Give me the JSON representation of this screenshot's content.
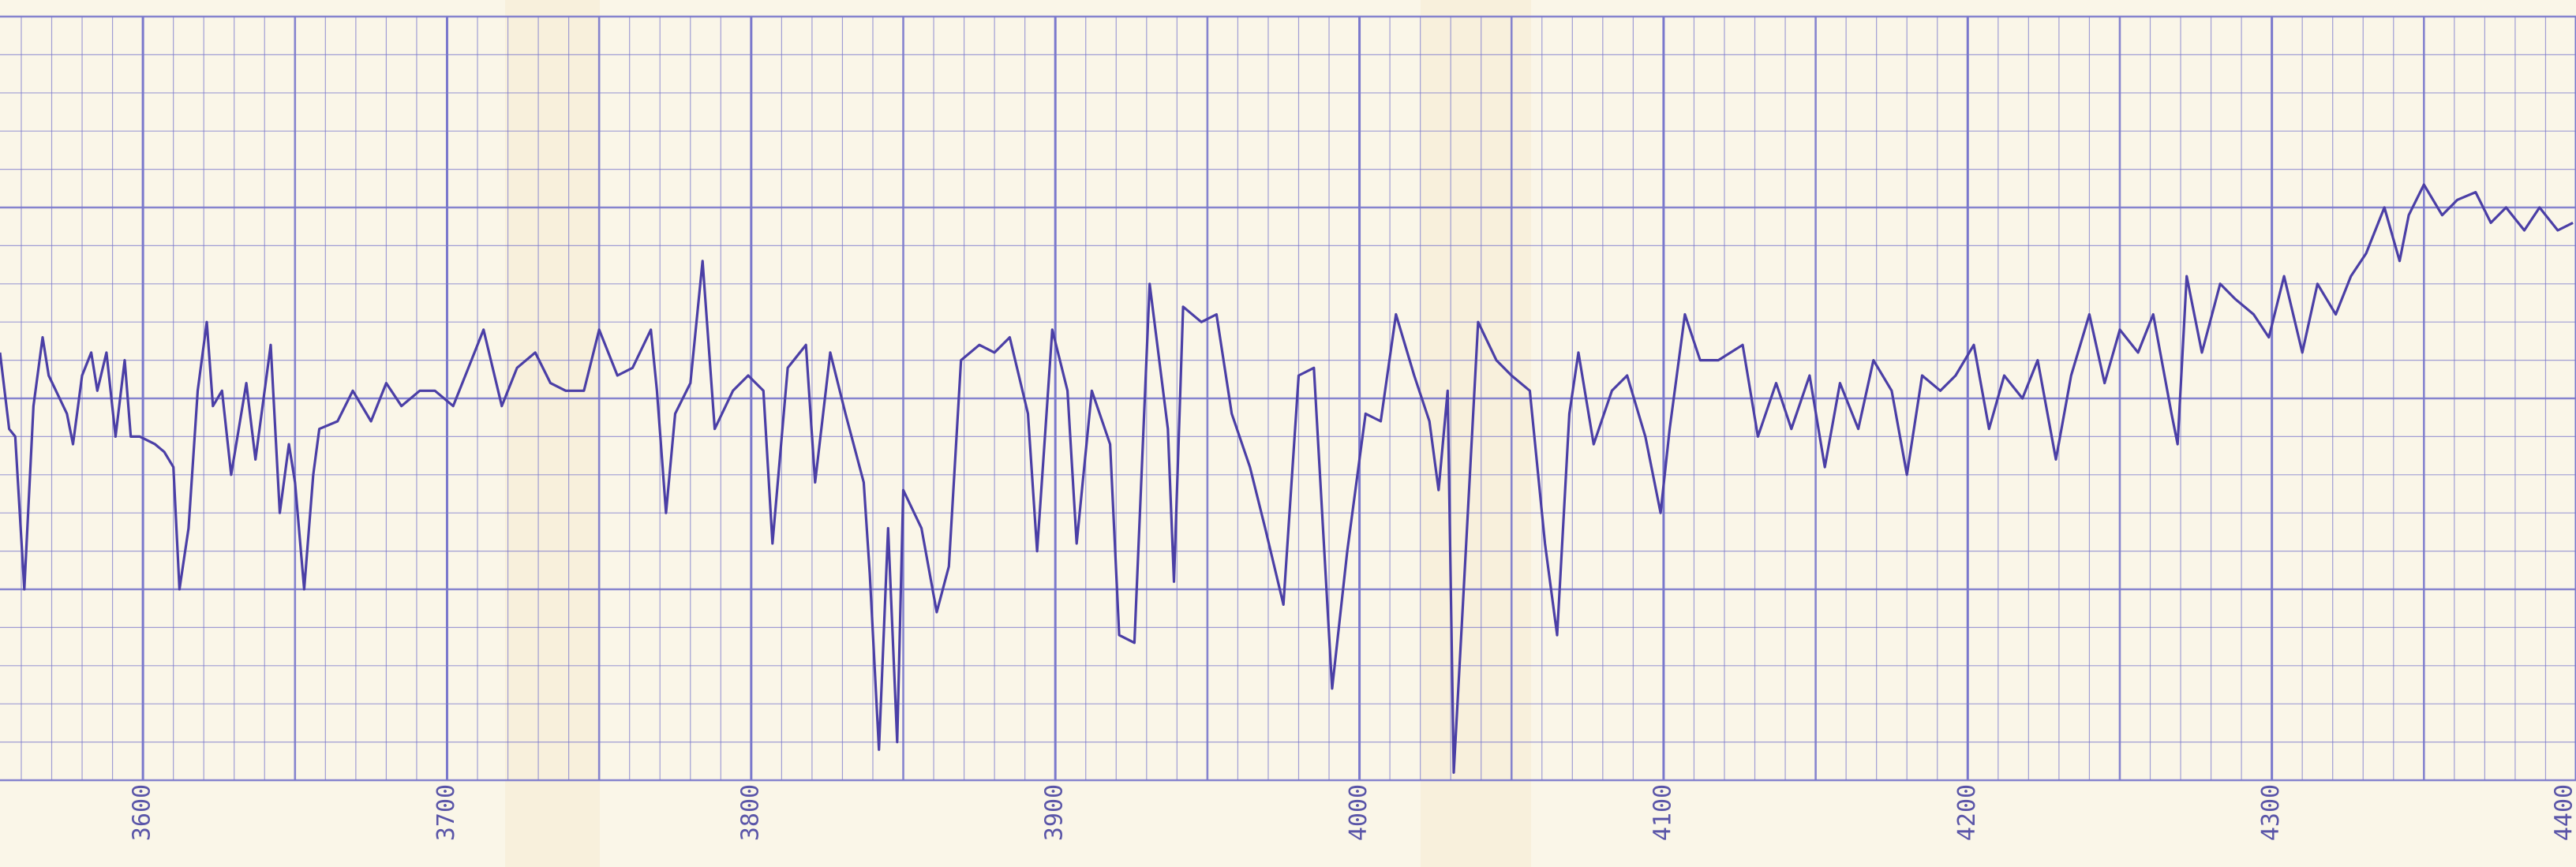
{
  "chart_data": {
    "type": "line",
    "color": "#4b3fa6",
    "grid": true,
    "xlim": [
      3553,
      4400
    ],
    "ylim": [
      0,
      100
    ],
    "xticks": [
      3600,
      3700,
      3800,
      3900,
      4000,
      4100,
      4200,
      4300,
      4400
    ],
    "x": [
      3553,
      3556,
      3558,
      3561,
      3564,
      3567,
      3569,
      3575,
      3577,
      3580,
      3583,
      3585,
      3588,
      3591,
      3594,
      3596,
      3599,
      3604,
      3607,
      3610,
      3612,
      3615,
      3618,
      3621,
      3623,
      3626,
      3629,
      3634,
      3637,
      3642,
      3645,
      3648,
      3650,
      3653,
      3656,
      3658,
      3664,
      3669,
      3675,
      3680,
      3685,
      3691,
      3696,
      3702,
      3707,
      3712,
      3718,
      3723,
      3729,
      3734,
      3739,
      3745,
      3750,
      3756,
      3761,
      3767,
      3769,
      3772,
      3775,
      3780,
      3784,
      3788,
      3794,
      3799,
      3804,
      3807,
      3812,
      3818,
      3821,
      3826,
      3831,
      3837,
      3839,
      3842,
      3845,
      3848,
      3850,
      3856,
      3861,
      3865,
      3869,
      3875,
      3880,
      3885,
      3891,
      3894,
      3899,
      3904,
      3907,
      3912,
      3918,
      3921,
      3926,
      3931,
      3937,
      3939,
      3942,
      3948,
      3953,
      3958,
      3964,
      3969,
      3975,
      3980,
      3985,
      3991,
      3996,
      4002,
      4007,
      4012,
      4018,
      4023,
      4026,
      4029,
      4031,
      4034,
      4039,
      4045,
      4050,
      4056,
      4061,
      4065,
      4069,
      4072,
      4077,
      4083,
      4088,
      4094,
      4099,
      4102,
      4107,
      4112,
      4118,
      4126,
      4131,
      4137,
      4142,
      4148,
      4153,
      4158,
      4164,
      4169,
      4175,
      4180,
      4185,
      4191,
      4196,
      4202,
      4207,
      4212,
      4218,
      4223,
      4229,
      4234,
      4240,
      4245,
      4250,
      4256,
      4261,
      4267,
      4269,
      4272,
      4277,
      4283,
      4288,
      4294,
      4299,
      4304,
      4310,
      4315,
      4321,
      4326,
      4331,
      4337,
      4342,
      4345,
      4350,
      4356,
      4361,
      4367,
      4372,
      4377,
      4383,
      4388,
      4394,
      4399
    ],
    "values": [
      56,
      46,
      45,
      25,
      49,
      58,
      53,
      48,
      44,
      53,
      56,
      51,
      56,
      45,
      55,
      45,
      45,
      44,
      43,
      41,
      25,
      33,
      51,
      60,
      49,
      51,
      40,
      52,
      42,
      57,
      35,
      44,
      39,
      25,
      40,
      46,
      47,
      51,
      47,
      52,
      49,
      51,
      51,
      49,
      54,
      59,
      49,
      54,
      56,
      52,
      51,
      51,
      59,
      53,
      54,
      59,
      51,
      35,
      48,
      52,
      68,
      46,
      51,
      53,
      51,
      31,
      54,
      57,
      39,
      56,
      48,
      39,
      27,
      4,
      33,
      5,
      38,
      33,
      22,
      28,
      55,
      57,
      56,
      58,
      48,
      30,
      59,
      51,
      31,
      51,
      44,
      19,
      18,
      65,
      46,
      26,
      62,
      60,
      61,
      48,
      41,
      33,
      23,
      53,
      54,
      12,
      30,
      48,
      47,
      61,
      53,
      47,
      38,
      51,
      1,
      23,
      60,
      55,
      53,
      51,
      31,
      19,
      48,
      56,
      44,
      51,
      53,
      45,
      35,
      46,
      61,
      55,
      55,
      57,
      45,
      52,
      46,
      53,
      41,
      52,
      46,
      55,
      51,
      40,
      53,
      51,
      53,
      57,
      46,
      53,
      50,
      55,
      42,
      53,
      61,
      52,
      59,
      56,
      61,
      48,
      44,
      66,
      56,
      65,
      63,
      61,
      58,
      66,
      56,
      65,
      61,
      66,
      69,
      75,
      68,
      74,
      78,
      74,
      76,
      77,
      73,
      75,
      72,
      75,
      72,
      73
    ]
  }
}
